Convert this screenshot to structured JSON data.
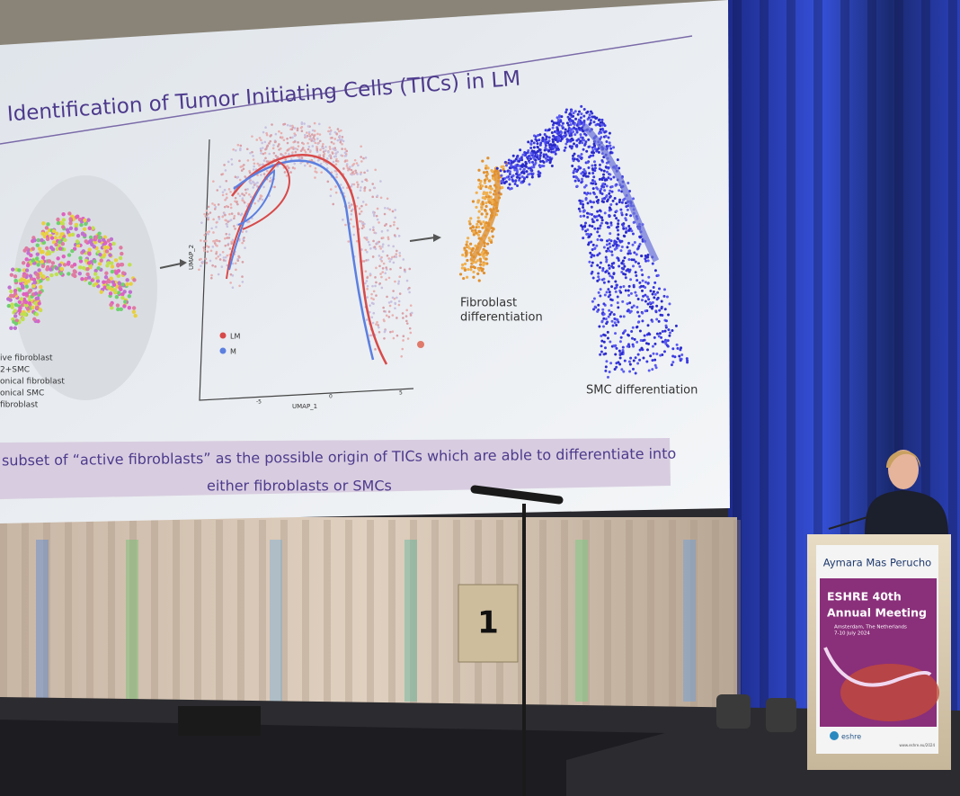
{
  "slide": {
    "title": "Identification of Tumor Initiating Cells (TICs) in LM",
    "left_legend": [
      "ive fibroblast",
      "2+SMC",
      "onical fibroblast",
      "onical SMC",
      "fibroblast"
    ],
    "umap": {
      "y_label": "UMAP_2",
      "x_label": "UMAP_1",
      "x_ticks": [
        "-5",
        "0",
        "5"
      ],
      "legend": [
        "LM",
        "M"
      ]
    },
    "fibroblast_label": [
      "Fibroblast",
      "differentiation"
    ],
    "smc_label": "SMC differentiation",
    "caption": [
      "subset of “active fibroblasts” as the possible origin of TICs which are able to differentiate into",
      "either fibroblasts or SMCs"
    ]
  },
  "stage_sign": "1",
  "podium": {
    "speaker": "Aymara Mas Perucho",
    "event_line1": "ESHRE 40th",
    "event_line2": "Annual Meeting",
    "location": "Amsterdam, The Netherlands",
    "dates": "7-10 July 2024",
    "logo": "eshre",
    "url": "www.eshre.eu/2024"
  }
}
